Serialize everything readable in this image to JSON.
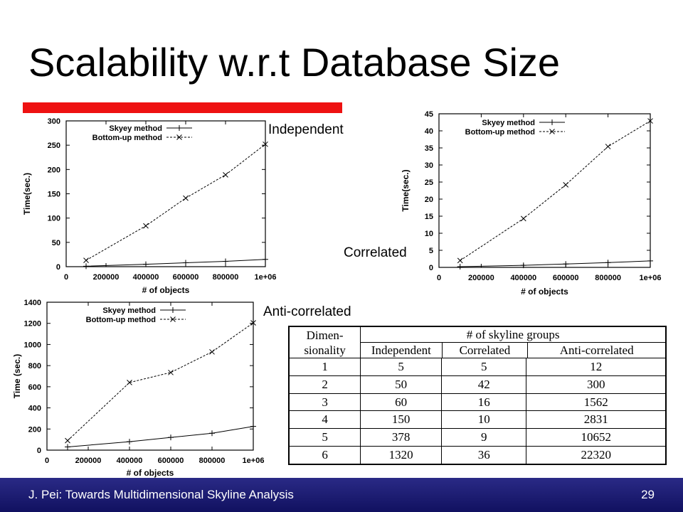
{
  "slide": {
    "title": "Scalability w.r.t Database Size",
    "accent_color": "#ee1111",
    "footer_text": "J. Pei: Towards Multidimensional Skyline Analysis",
    "page_number": "29",
    "footer_color": "#1c1c72"
  },
  "chart_data": [
    {
      "id": "independent",
      "type": "line",
      "label": "Independent",
      "xlabel": "# of objects",
      "ylabel": "Time(sec.)",
      "xlim": [
        0,
        1000000
      ],
      "ylim": [
        0,
        300
      ],
      "xticks": [
        0,
        200000,
        400000,
        600000,
        800000,
        1000000
      ],
      "xtick_labels": [
        "0",
        "200000",
        "400000",
        "600000",
        "800000",
        "1e+06"
      ],
      "yticks": [
        0,
        50,
        100,
        150,
        200,
        250,
        300
      ],
      "ytick_labels": [
        "0",
        "50",
        "100",
        "150",
        "200",
        "250",
        "300"
      ],
      "legend": "top-left",
      "grid": false,
      "x": [
        100000,
        400000,
        600000,
        800000,
        1000000
      ],
      "series": [
        {
          "name": "Skyey method",
          "marker": "plus",
          "dashed": false,
          "values": [
            1,
            5,
            8,
            11,
            15
          ]
        },
        {
          "name": "Bottom-up method",
          "marker": "x",
          "dashed": true,
          "values": [
            13,
            84,
            141,
            189,
            252
          ]
        }
      ]
    },
    {
      "id": "correlated",
      "type": "line",
      "label": "Correlated",
      "xlabel": "# of objects",
      "ylabel": "Time(sec.)",
      "xlim": [
        0,
        1000000
      ],
      "ylim": [
        0,
        45
      ],
      "xticks": [
        0,
        200000,
        400000,
        600000,
        800000,
        1000000
      ],
      "xtick_labels": [
        "0",
        "200000",
        "400000",
        "600000",
        "800000",
        "1e+06"
      ],
      "yticks": [
        0,
        5,
        10,
        15,
        20,
        25,
        30,
        35,
        40,
        45
      ],
      "ytick_labels": [
        "0",
        "5",
        "10",
        "15",
        "20",
        "25",
        "30",
        "35",
        "40",
        "45"
      ],
      "legend": "top-left",
      "grid": false,
      "x": [
        100000,
        400000,
        600000,
        800000,
        1000000
      ],
      "series": [
        {
          "name": "Skyey method",
          "marker": "plus",
          "dashed": false,
          "values": [
            0.2,
            0.6,
            1.0,
            1.4,
            1.9
          ]
        },
        {
          "name": "Bottom-up method",
          "marker": "x",
          "dashed": true,
          "values": [
            2,
            14.3,
            24.2,
            35.4,
            42.9
          ]
        }
      ]
    },
    {
      "id": "anti-correlated",
      "type": "line",
      "label": "Anti-correlated",
      "xlabel": "# of objects",
      "ylabel": "Time (sec.)",
      "xlim": [
        0,
        1000000
      ],
      "ylim": [
        0,
        1400
      ],
      "xticks": [
        0,
        200000,
        400000,
        600000,
        800000,
        1000000
      ],
      "xtick_labels": [
        "0",
        "200000",
        "400000",
        "600000",
        "800000",
        "1e+06"
      ],
      "yticks": [
        0,
        200,
        400,
        600,
        800,
        1000,
        1200,
        1400
      ],
      "ytick_labels": [
        "0",
        "200",
        "400",
        "600",
        "800",
        "1000",
        "1200",
        "1400"
      ],
      "legend": "top-left",
      "grid": false,
      "x": [
        100000,
        400000,
        600000,
        800000,
        1000000
      ],
      "series": [
        {
          "name": "Skyey method",
          "marker": "plus",
          "dashed": false,
          "values": [
            30,
            80,
            120,
            160,
            225
          ]
        },
        {
          "name": "Bottom-up method",
          "marker": "x",
          "dashed": true,
          "values": [
            90,
            640,
            735,
            930,
            1205
          ]
        }
      ]
    }
  ],
  "table": {
    "header_dim_line1": "Dimen-",
    "header_dim_line2": "sionality",
    "header_group": "# of skyline groups",
    "columns": [
      "Independent",
      "Correlated",
      "Anti-correlated"
    ],
    "rows": [
      [
        "1",
        "5",
        "5",
        "12"
      ],
      [
        "2",
        "50",
        "42",
        "300"
      ],
      [
        "3",
        "60",
        "16",
        "1562"
      ],
      [
        "4",
        "150",
        "10",
        "2831"
      ],
      [
        "5",
        "378",
        "9",
        "10652"
      ],
      [
        "6",
        "1320",
        "36",
        "22320"
      ]
    ]
  }
}
